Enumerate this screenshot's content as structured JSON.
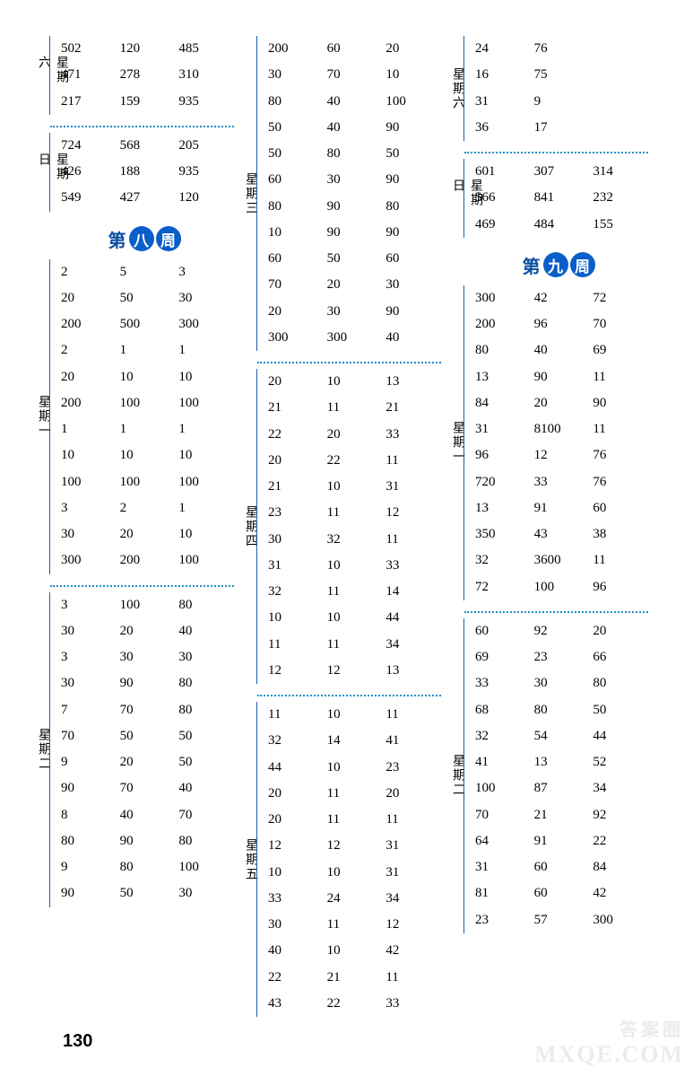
{
  "pageNumber": "130",
  "watermark_main": "MXQE.COM",
  "watermark_sub": "答案圈",
  "weeks": {
    "w8": {
      "left": "第",
      "c1": "八",
      "right": "周"
    },
    "w9": {
      "left": "第",
      "c1": "九",
      "right": "周"
    }
  },
  "col1": {
    "sat": {
      "label": "星期六",
      "rows": [
        [
          "502",
          "120",
          "485"
        ],
        [
          "471",
          "278",
          "310"
        ],
        [
          "217",
          "159",
          "935"
        ]
      ]
    },
    "sun": {
      "label": "星期日",
      "rows": [
        [
          "724",
          "568",
          "205"
        ],
        [
          "426",
          "188",
          "935"
        ],
        [
          "549",
          "427",
          "120"
        ]
      ]
    },
    "mon": {
      "label": "星期一",
      "rows": [
        [
          "2",
          "5",
          "3"
        ],
        [
          "20",
          "50",
          "30"
        ],
        [
          "200",
          "500",
          "300"
        ],
        [
          "2",
          "1",
          "1"
        ],
        [
          "20",
          "10",
          "10"
        ],
        [
          "200",
          "100",
          "100"
        ],
        [
          "1",
          "1",
          "1"
        ],
        [
          "10",
          "10",
          "10"
        ],
        [
          "100",
          "100",
          "100"
        ],
        [
          "3",
          "2",
          "1"
        ],
        [
          "30",
          "20",
          "10"
        ],
        [
          "300",
          "200",
          "100"
        ]
      ]
    },
    "tue": {
      "label": "星期二",
      "rows": [
        [
          "3",
          "100",
          "80"
        ],
        [
          "30",
          "20",
          "40"
        ],
        [
          "3",
          "30",
          "30"
        ],
        [
          "30",
          "90",
          "80"
        ],
        [
          "7",
          "70",
          "80"
        ],
        [
          "70",
          "50",
          "50"
        ],
        [
          "9",
          "20",
          "50"
        ],
        [
          "90",
          "70",
          "40"
        ],
        [
          "8",
          "40",
          "70"
        ],
        [
          "80",
          "90",
          "80"
        ],
        [
          "9",
          "80",
          "100"
        ],
        [
          "90",
          "50",
          "30"
        ]
      ]
    }
  },
  "col2": {
    "wed": {
      "label": "星期三",
      "rows": [
        [
          "200",
          "60",
          "20"
        ],
        [
          "30",
          "70",
          "10"
        ],
        [
          "80",
          "40",
          "100"
        ],
        [
          "50",
          "40",
          "90"
        ],
        [
          "50",
          "80",
          "50"
        ],
        [
          "60",
          "30",
          "90"
        ],
        [
          "80",
          "90",
          "80"
        ],
        [
          "10",
          "90",
          "90"
        ],
        [
          "60",
          "50",
          "60"
        ],
        [
          "70",
          "20",
          "30"
        ],
        [
          "20",
          "30",
          "90"
        ],
        [
          "300",
          "300",
          "40"
        ]
      ]
    },
    "thu": {
      "label": "星期四",
      "rows": [
        [
          "20",
          "10",
          "13"
        ],
        [
          "21",
          "11",
          "21"
        ],
        [
          "22",
          "20",
          "33"
        ],
        [
          "20",
          "22",
          "11"
        ],
        [
          "21",
          "10",
          "31"
        ],
        [
          "23",
          "11",
          "12"
        ],
        [
          "30",
          "32",
          "11"
        ],
        [
          "31",
          "10",
          "33"
        ],
        [
          "32",
          "11",
          "14"
        ],
        [
          "10",
          "10",
          "44"
        ],
        [
          "11",
          "11",
          "34"
        ],
        [
          "12",
          "12",
          "13"
        ]
      ]
    },
    "fri": {
      "label": "星期五",
      "rows": [
        [
          "11",
          "10",
          "11"
        ],
        [
          "32",
          "14",
          "41"
        ],
        [
          "44",
          "10",
          "23"
        ],
        [
          "20",
          "11",
          "20"
        ],
        [
          "20",
          "11",
          "11"
        ],
        [
          "12",
          "12",
          "31"
        ],
        [
          "10",
          "10",
          "31"
        ],
        [
          "33",
          "24",
          "34"
        ],
        [
          "30",
          "11",
          "12"
        ],
        [
          "40",
          "10",
          "42"
        ],
        [
          "22",
          "21",
          "11"
        ],
        [
          "43",
          "22",
          "33"
        ]
      ]
    }
  },
  "col3": {
    "sat": {
      "label": "星期六",
      "rows": [
        [
          "24",
          "76",
          ""
        ],
        [
          "16",
          "75",
          ""
        ],
        [
          "31",
          "9",
          ""
        ],
        [
          "36",
          "17",
          ""
        ]
      ]
    },
    "sun": {
      "label": "星期日",
      "rows": [
        [
          "601",
          "307",
          "314"
        ],
        [
          "566",
          "841",
          "232"
        ],
        [
          "469",
          "484",
          "155"
        ]
      ]
    },
    "mon": {
      "label": "星期一",
      "rows": [
        [
          "300",
          "42",
          "72"
        ],
        [
          "200",
          "96",
          "70"
        ],
        [
          "80",
          "40",
          "69"
        ],
        [
          "13",
          "90",
          "11"
        ],
        [
          "84",
          "20",
          "90"
        ],
        [
          "31",
          "8100",
          "11"
        ],
        [
          "96",
          "12",
          "76"
        ],
        [
          "720",
          "33",
          "76"
        ],
        [
          "13",
          "91",
          "60"
        ],
        [
          "350",
          "43",
          "38"
        ],
        [
          "32",
          "3600",
          "11"
        ],
        [
          "72",
          "100",
          "96"
        ]
      ]
    },
    "tue": {
      "label": "星期二",
      "rows": [
        [
          "60",
          "92",
          "20"
        ],
        [
          "69",
          "23",
          "66"
        ],
        [
          "33",
          "30",
          "80"
        ],
        [
          "68",
          "80",
          "50"
        ],
        [
          "32",
          "54",
          "44"
        ],
        [
          "41",
          "13",
          "52"
        ],
        [
          "100",
          "87",
          "34"
        ],
        [
          "70",
          "21",
          "92"
        ],
        [
          "64",
          "91",
          "22"
        ],
        [
          "31",
          "60",
          "84"
        ],
        [
          "81",
          "60",
          "42"
        ],
        [
          "23",
          "57",
          "300"
        ]
      ]
    }
  }
}
